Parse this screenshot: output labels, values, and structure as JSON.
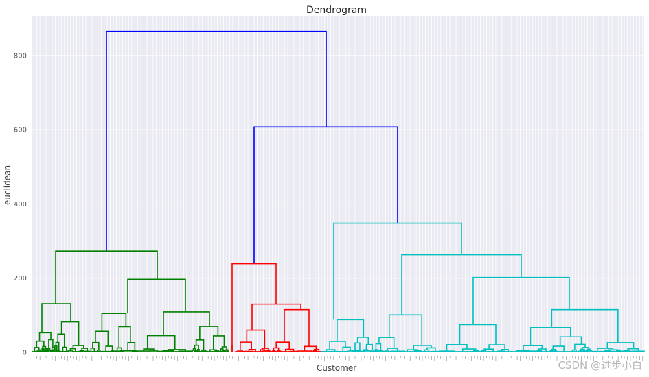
{
  "chart_data": {
    "type": "dendrogram",
    "title": "Dendrogram",
    "xlabel": "Customer",
    "ylabel": "euclidean",
    "ylim": [
      0,
      905
    ],
    "yticks": [
      0,
      200,
      400,
      600,
      800
    ],
    "grid": true,
    "colors": {
      "top": "#0000ff",
      "cluster_1": "#008000",
      "cluster_2": "#ff0000",
      "cluster_3": "#00bfbf",
      "grid": "#ffffff",
      "plot_bg": "#eaeaf2"
    },
    "merges": [
      {
        "name": "root",
        "height": 865,
        "color": "top"
      },
      {
        "name": "right-branch",
        "height": 607,
        "color": "top"
      },
      {
        "name": "green-cluster",
        "height": 273,
        "color": "cluster_1"
      },
      {
        "name": "red-cluster",
        "height": 239,
        "color": "cluster_2"
      },
      {
        "name": "cyan-cluster",
        "height": 348,
        "color": "cluster_3"
      },
      {
        "name": "cyan-sub",
        "height": 263,
        "color": "cluster_3"
      },
      {
        "name": "cyan-subsub",
        "height": 202,
        "color": "cluster_3"
      },
      {
        "name": "green-right",
        "height": 197,
        "color": "cluster_1"
      },
      {
        "name": "green-left",
        "height": 131,
        "color": "cluster_1"
      },
      {
        "name": "red-right",
        "height": 130,
        "color": "cluster_2"
      },
      {
        "name": "cyan-right",
        "height": 115,
        "color": "cluster_3"
      },
      {
        "name": "green-right-r",
        "height": 109,
        "color": "cluster_1"
      },
      {
        "name": "cyan-mid",
        "height": 101,
        "color": "cluster_3"
      }
    ]
  },
  "watermark": "CSDN @进步小白"
}
